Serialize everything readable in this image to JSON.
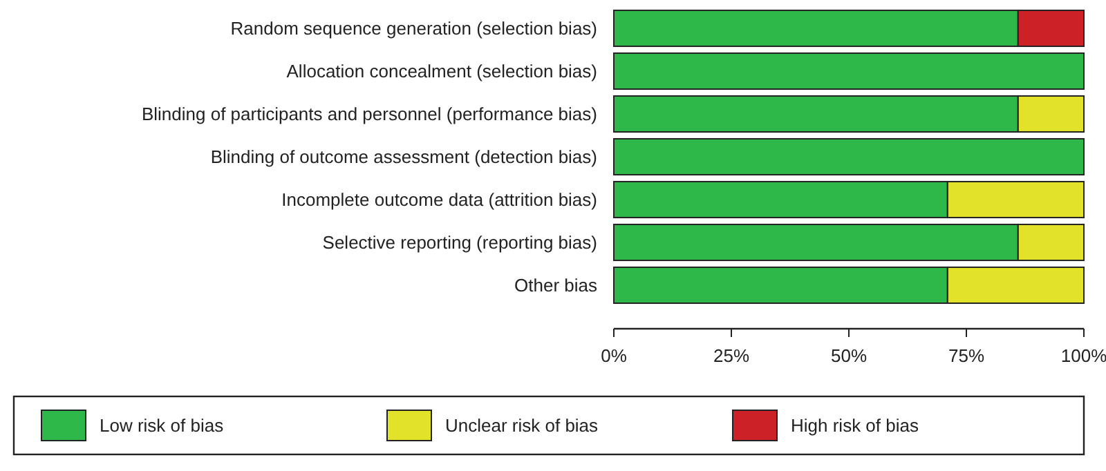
{
  "chart_data": {
    "type": "bar",
    "orientation": "horizontal",
    "stacked": true,
    "categories": [
      "Random sequence generation (selection bias)",
      "Allocation concealment (selection bias)",
      "Blinding of participants and personnel (performance bias)",
      "Blinding of outcome assessment (detection bias)",
      "Incomplete outcome data (attrition bias)",
      "Selective reporting (reporting bias)",
      "Other bias"
    ],
    "series": [
      {
        "name": "Low risk of bias",
        "color": "#2fb84a",
        "values": [
          86,
          100,
          86,
          100,
          71,
          86,
          71
        ]
      },
      {
        "name": "Unclear risk of bias",
        "color": "#e2e22a",
        "values": [
          0,
          0,
          14,
          0,
          29,
          14,
          29
        ]
      },
      {
        "name": "High risk of bias",
        "color": "#cc2127",
        "values": [
          14,
          0,
          0,
          0,
          0,
          0,
          0
        ]
      }
    ],
    "xlim": [
      0,
      100
    ],
    "xticks": [
      {
        "value": 0,
        "label": "0%"
      },
      {
        "value": 25,
        "label": "25%"
      },
      {
        "value": 50,
        "label": "50%"
      },
      {
        "value": 75,
        "label": "75%"
      },
      {
        "value": 100,
        "label": "100%"
      }
    ],
    "legend": "bottom"
  }
}
